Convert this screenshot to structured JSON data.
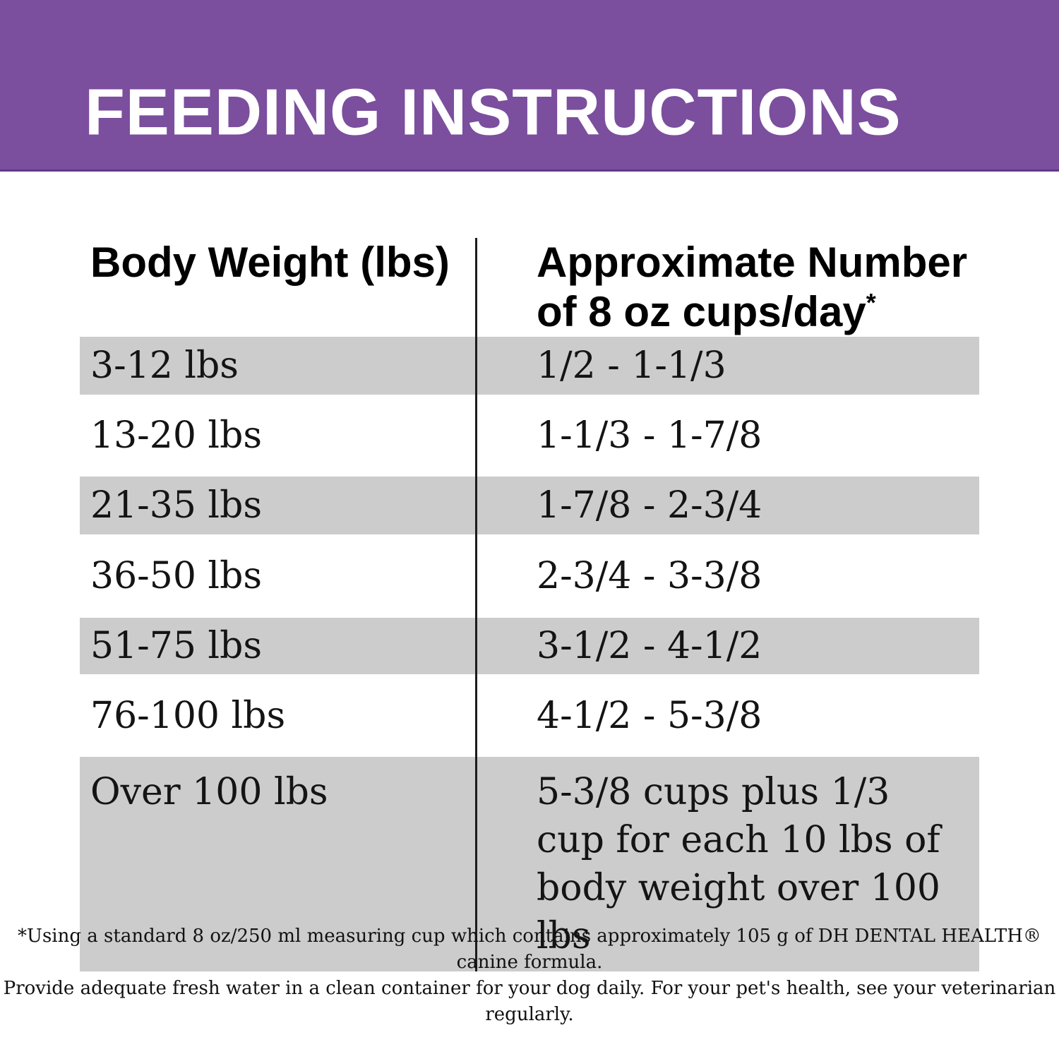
{
  "header": {
    "title": "FEEDING INSTRUCTIONS"
  },
  "table": {
    "columns": [
      {
        "label": "Body Weight (lbs)"
      },
      {
        "label_line1": "Approximate Number",
        "label_line2": "of 8 oz cups/day",
        "superscript": "*"
      }
    ],
    "rows": [
      {
        "weight": "3-12 lbs",
        "cups": "1/2 - 1-1/3"
      },
      {
        "weight": "13-20 lbs",
        "cups": "1-1/3 - 1-7/8"
      },
      {
        "weight": "21-35 lbs",
        "cups": "1-7/8 - 2-3/4"
      },
      {
        "weight": "36-50 lbs",
        "cups": "2-3/4 - 3-3/8"
      },
      {
        "weight": "51-75 lbs",
        "cups": "3-1/2 - 4-1/2"
      },
      {
        "weight": "76-100 lbs",
        "cups": "4-1/2 - 5-3/8"
      },
      {
        "weight": "Over 100 lbs",
        "cups": "5-3/8 cups plus 1/3 cup for each 10 lbs of body weight over 100 lbs"
      }
    ]
  },
  "footnote": {
    "line1": "*Using a standard 8 oz/250 ml measuring cup which contains approximately 105 g of DH DENTAL HEALTH® canine formula.",
    "line2": "Provide adequate fresh water in a clean container for your dog daily. For your pet's health, see your veterinarian regularly."
  },
  "colors": {
    "band_purple": "#7B4E9E",
    "row_gray": "#CCCCCC",
    "divider": "#1C1C1C"
  }
}
